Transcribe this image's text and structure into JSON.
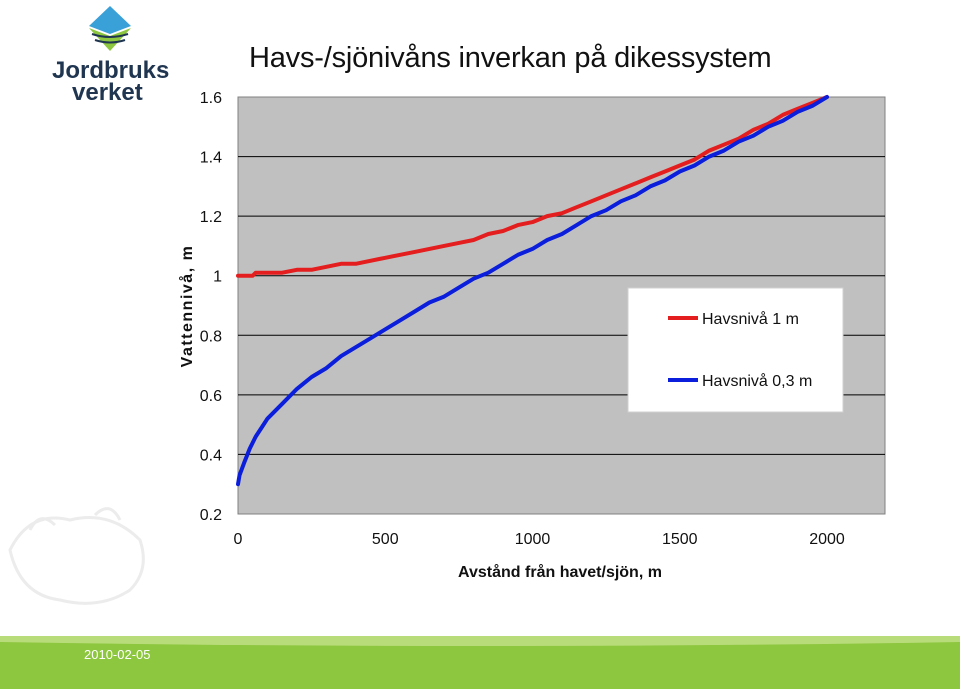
{
  "slide": {
    "title": "Havs-/sjönivåns inverkan på dikessystem",
    "date": "2010-02-05",
    "logo_text_1": "Jordbruks",
    "logo_text_2": "verket"
  },
  "colors": {
    "plot_bg": "#c0c0c0",
    "series_1": "#e41e1e",
    "series_2": "#0a1edc",
    "footer_green": "#8dc63f",
    "logo_dark": "#1f3550",
    "logo_blue": "#3aa0d8",
    "logo_green": "#8dc63f"
  },
  "chart_data": {
    "type": "line",
    "title": "",
    "xlabel": "Avstånd från havet/sjön, m",
    "ylabel": "Vattennivå, m",
    "xlim": [
      0,
      2000
    ],
    "ylim": [
      0.2,
      1.6
    ],
    "xticks": [
      "0",
      "500",
      "1000",
      "1500",
      "2000"
    ],
    "yticks": [
      "0.2",
      "0.4",
      "0.6",
      "0.8",
      "1",
      "1.2",
      "1.4",
      "1.6"
    ],
    "grid": "horizontal",
    "legend_position": "right",
    "series": [
      {
        "name": "Havsnivå 1 m",
        "color": "#e41e1e",
        "x": [
          0,
          50,
          60,
          100,
          150,
          200,
          250,
          300,
          350,
          400,
          500,
          600,
          700,
          750,
          800,
          850,
          900,
          950,
          1000,
          1050,
          1100,
          1150,
          1200,
          1250,
          1300,
          1350,
          1400,
          1450,
          1500,
          1550,
          1600,
          1650,
          1700,
          1750,
          1800,
          1850,
          1900,
          1950,
          2000
        ],
        "y": [
          1.0,
          1.0,
          1.01,
          1.01,
          1.01,
          1.02,
          1.02,
          1.03,
          1.04,
          1.04,
          1.06,
          1.08,
          1.1,
          1.11,
          1.12,
          1.14,
          1.15,
          1.17,
          1.18,
          1.2,
          1.21,
          1.23,
          1.25,
          1.27,
          1.29,
          1.31,
          1.33,
          1.35,
          1.37,
          1.39,
          1.42,
          1.44,
          1.46,
          1.49,
          1.51,
          1.54,
          1.56,
          1.58,
          1.6
        ]
      },
      {
        "name": "Havsnivå 0,3 m",
        "color": "#0a1edc",
        "x": [
          0,
          5,
          20,
          40,
          60,
          80,
          100,
          150,
          200,
          250,
          300,
          350,
          400,
          450,
          500,
          550,
          600,
          650,
          700,
          750,
          800,
          850,
          900,
          950,
          1000,
          1050,
          1100,
          1150,
          1200,
          1250,
          1300,
          1350,
          1400,
          1450,
          1500,
          1550,
          1600,
          1650,
          1700,
          1750,
          1800,
          1850,
          1900,
          1950,
          2000
        ],
        "y": [
          0.3,
          0.33,
          0.37,
          0.42,
          0.46,
          0.49,
          0.52,
          0.57,
          0.62,
          0.66,
          0.69,
          0.73,
          0.76,
          0.79,
          0.82,
          0.85,
          0.88,
          0.91,
          0.93,
          0.96,
          0.99,
          1.01,
          1.04,
          1.07,
          1.09,
          1.12,
          1.14,
          1.17,
          1.2,
          1.22,
          1.25,
          1.27,
          1.3,
          1.32,
          1.35,
          1.37,
          1.4,
          1.42,
          1.45,
          1.47,
          1.5,
          1.52,
          1.55,
          1.57,
          1.6
        ]
      }
    ]
  }
}
